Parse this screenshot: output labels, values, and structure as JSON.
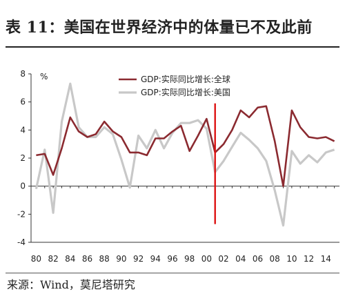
{
  "header": {
    "title": "表 11：美国在世界经济中的体量已不及此前"
  },
  "footer": {
    "source": "来源：Wind，莫尼塔研究"
  },
  "chart_data": {
    "type": "line",
    "title": "",
    "unit_label": "%",
    "xlabel": "",
    "ylabel": "",
    "ylim": [
      -4,
      8
    ],
    "yticks": [
      -4,
      -2,
      0,
      2,
      4,
      6,
      8
    ],
    "x": [
      1980,
      1981,
      1982,
      1983,
      1984,
      1985,
      1986,
      1987,
      1988,
      1989,
      1990,
      1991,
      1992,
      1993,
      1994,
      1995,
      1996,
      1997,
      1998,
      1999,
      2000,
      2001,
      2002,
      2003,
      2004,
      2005,
      2006,
      2007,
      2008,
      2009,
      2010,
      2011,
      2012,
      2013,
      2014,
      2015
    ],
    "xtick_labels": [
      "80",
      "82",
      "84",
      "86",
      "88",
      "90",
      "92",
      "94",
      "96",
      "98",
      "00",
      "02",
      "04",
      "06",
      "08",
      "10",
      "12",
      "14"
    ],
    "xtick_values": [
      1980,
      1982,
      1984,
      1986,
      1988,
      1990,
      1992,
      1994,
      1996,
      1998,
      2000,
      2002,
      2004,
      2006,
      2008,
      2010,
      2012,
      2014
    ],
    "grid": false,
    "legend_position": "top-right",
    "series": [
      {
        "name": "GDP:实际同比增长:全球",
        "color": "#8b2a30",
        "values": [
          2.2,
          2.3,
          0.8,
          2.7,
          4.9,
          3.9,
          3.5,
          3.7,
          4.6,
          3.9,
          3.5,
          2.4,
          2.4,
          2.2,
          3.4,
          3.4,
          3.9,
          4.3,
          2.5,
          3.6,
          4.8,
          2.4,
          3.0,
          4.0,
          5.4,
          4.9,
          5.6,
          5.7,
          3.2,
          0.0,
          5.4,
          4.2,
          3.5,
          3.4,
          3.5,
          3.2
        ]
      },
      {
        "name": "GDP:实际同比增长:美国",
        "color": "#c8c8c8",
        "values": [
          -0.2,
          2.6,
          -1.9,
          4.6,
          7.3,
          4.2,
          3.5,
          3.5,
          4.2,
          3.7,
          1.9,
          -0.1,
          3.6,
          2.7,
          4.0,
          2.7,
          3.8,
          4.5,
          4.5,
          4.7,
          4.1,
          1.0,
          1.8,
          2.8,
          3.8,
          3.3,
          2.7,
          1.8,
          -0.3,
          -2.8,
          2.5,
          1.6,
          2.2,
          1.7,
          2.4,
          2.6
        ]
      }
    ],
    "annotations": [
      {
        "type": "vertical-line",
        "x": 2001,
        "color": "#dd1111"
      }
    ]
  }
}
